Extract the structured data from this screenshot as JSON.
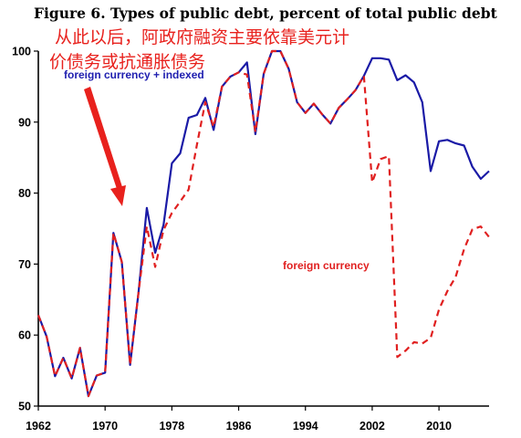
{
  "chart_data": {
    "type": "line",
    "title": "Figure 6. Types of public debt, percent of total public debt",
    "annotation": [
      "从此以后，阿政府融资主要依靠美元计",
      "价债务或抗通胀债务"
    ],
    "xlabel": "",
    "ylabel": "",
    "xlim": [
      1962,
      2016
    ],
    "ylim": [
      50,
      100
    ],
    "x_ticks": [
      "1962",
      "1970",
      "1978",
      "1986",
      "1994",
      "2002",
      "2010"
    ],
    "y_ticks": [
      "50",
      "60",
      "70",
      "80",
      "90",
      "100"
    ],
    "grid": false,
    "colors": {
      "foreign_currency_indexed": "#1a1aa6",
      "foreign_currency": "#e02020",
      "arrow": "#e8211d"
    },
    "series": [
      {
        "name": "foreign currency + indexed",
        "style": "solid",
        "x": [
          1962,
          1963,
          1964,
          1965,
          1966,
          1967,
          1968,
          1969,
          1970,
          1971,
          1972,
          1973,
          1974,
          1975,
          1976,
          1977,
          1978,
          1979,
          1980,
          1981,
          1982,
          1983,
          1984,
          1985,
          1986,
          1987,
          1988,
          1989,
          1990,
          1991,
          1992,
          1993,
          1994,
          1995,
          1996,
          1997,
          1998,
          1999,
          2000,
          2001,
          2002,
          2003,
          2004,
          2005,
          2006,
          2007,
          2008,
          2009,
          2010,
          2011,
          2012,
          2013,
          2014,
          2015,
          2016
        ],
        "y": [
          62.8,
          59.8,
          54.2,
          56.8,
          53.9,
          58.2,
          51.4,
          54.3,
          54.7,
          74.4,
          70.3,
          55.8,
          66,
          77.9,
          71.6,
          75.5,
          84.2,
          85.6,
          90.6,
          91,
          93.4,
          88.9,
          95,
          96.4,
          97,
          98.4,
          88.3,
          96.8,
          100,
          100,
          97.5,
          92.8,
          91.3,
          92.6,
          91.1,
          89.8,
          92,
          93.2,
          94.5,
          96.5,
          99,
          99,
          98.8,
          95.9,
          96.6,
          95.6,
          92.8,
          83.1,
          87.3,
          87.5,
          87,
          86.7,
          83.7,
          82,
          83.1
        ]
      },
      {
        "name": "foreign currency",
        "style": "dashed",
        "x": [
          1962,
          1963,
          1964,
          1965,
          1966,
          1967,
          1968,
          1969,
          1970,
          1971,
          1972,
          1973,
          1974,
          1975,
          1976,
          1977,
          1978,
          1979,
          1980,
          1981,
          1982,
          1983,
          1984,
          1985,
          1986,
          1987,
          1988,
          1989,
          1990,
          1991,
          1992,
          1993,
          1994,
          1995,
          1996,
          1997,
          1998,
          1999,
          2000,
          2001,
          2002,
          2003,
          2004,
          2005,
          2006,
          2007,
          2008,
          2009,
          2010,
          2011,
          2012,
          2013,
          2014,
          2015,
          2016
        ],
        "y": [
          62.8,
          59.8,
          54.2,
          56.8,
          53.9,
          58.2,
          51.4,
          54.3,
          54.7,
          74.4,
          70.3,
          55.8,
          66,
          75.3,
          69.6,
          74.8,
          77.2,
          78.8,
          80.5,
          86.8,
          92.8,
          89.3,
          95,
          96.4,
          97,
          96.7,
          88.6,
          96.8,
          100,
          100,
          97.5,
          92.8,
          91.3,
          92.6,
          91.1,
          89.8,
          92,
          93.2,
          94.5,
          96.5,
          81.5,
          84.8,
          85.2,
          56.9,
          57.8,
          59,
          58.8,
          59.6,
          63.6,
          66.2,
          68.2,
          72.1,
          74.9,
          75.3,
          73.8
        ]
      }
    ]
  }
}
